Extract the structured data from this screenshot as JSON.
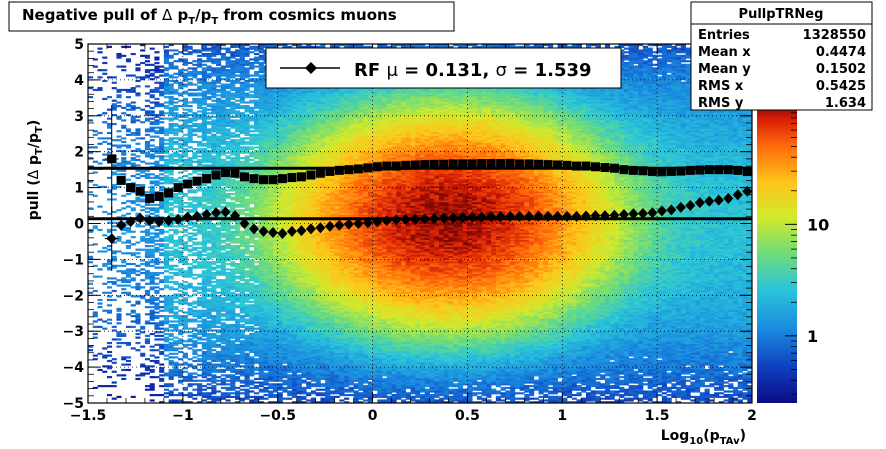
{
  "chart_data": {
    "type": "heatmap",
    "title_parts": [
      "Negative pull of ",
      "Δ",
      " p",
      "T",
      "/p",
      "T",
      " from cosmics muons"
    ],
    "xlabel_parts": [
      "Log",
      "10",
      "(p",
      "TAv",
      ")"
    ],
    "ylabel_parts": [
      "pull (",
      "Δ",
      " p",
      "T",
      "/p",
      "T",
      ")"
    ],
    "xlim": [
      -1.5,
      2.0
    ],
    "ylim": [
      -5,
      5
    ],
    "x_ticks": [
      "−1.5",
      "−1",
      "−0.5",
      "0",
      "0.5",
      "1",
      "1.5",
      "2"
    ],
    "x_tick_values": [
      -1.5,
      -1,
      -0.5,
      0,
      0.5,
      1,
      1.5,
      2
    ],
    "y_ticks": [
      "−5",
      "−4",
      "−3",
      "−2",
      "−1",
      "0",
      "1",
      "2",
      "3",
      "4",
      "5"
    ],
    "y_tick_values": [
      -5,
      -4,
      -3,
      -2,
      -1,
      0,
      1,
      2,
      3,
      4,
      5
    ],
    "grid": true,
    "colorbar": {
      "scale": "log",
      "ticks": [
        "1",
        "10"
      ],
      "tick_values": [
        1,
        10
      ],
      "range": [
        0.25,
        120
      ]
    },
    "legend": {
      "placement": "top-center",
      "prefix": "RF ",
      "mu": "μ",
      "mu_value": " =  0.131, ",
      "sigma": "σ",
      "sigma_value": " =   1.539"
    },
    "fit_lines": {
      "mean": 0.131,
      "sigma": 1.539
    },
    "stats_box": {
      "title": "PullpTRNeg",
      "rows": [
        {
          "label": "Entries",
          "value": "1328550"
        },
        {
          "label": "Mean x",
          "value": "0.4474"
        },
        {
          "label": "Mean y",
          "value": "0.1502"
        },
        {
          "label": "RMS x",
          "value": "0.5425"
        },
        {
          "label": "RMS y",
          "value": "1.634"
        }
      ]
    },
    "series": [
      {
        "marker": "diamond",
        "x": [
          -1.375,
          -1.325,
          -1.275,
          -1.225,
          -1.175,
          -1.125,
          -1.075,
          -1.025,
          -0.975,
          -0.925,
          -0.875,
          -0.825,
          -0.775,
          -0.725,
          -0.675,
          -0.625,
          -0.575,
          -0.525,
          -0.475,
          -0.425,
          -0.375,
          -0.325,
          -0.275,
          -0.225,
          -0.175,
          -0.125,
          -0.075,
          -0.025,
          0.025,
          0.075,
          0.125,
          0.175,
          0.225,
          0.275,
          0.325,
          0.375,
          0.425,
          0.475,
          0.525,
          0.575,
          0.625,
          0.675,
          0.725,
          0.775,
          0.825,
          0.875,
          0.925,
          0.975,
          1.025,
          1.075,
          1.125,
          1.175,
          1.225,
          1.275,
          1.325,
          1.375,
          1.425,
          1.475,
          1.525,
          1.575,
          1.625,
          1.675,
          1.725,
          1.775,
          1.825,
          1.875,
          1.925,
          1.975
        ],
        "y": [
          -0.42,
          -0.05,
          0.05,
          0.15,
          0.08,
          0.05,
          0.08,
          0.12,
          0.18,
          0.2,
          0.25,
          0.3,
          0.32,
          0.22,
          0.0,
          -0.15,
          -0.22,
          -0.25,
          -0.28,
          -0.22,
          -0.2,
          -0.15,
          -0.12,
          -0.08,
          -0.05,
          -0.02,
          0.0,
          0.02,
          0.05,
          0.08,
          0.1,
          0.11,
          0.12,
          0.13,
          0.14,
          0.15,
          0.16,
          0.17,
          0.18,
          0.18,
          0.19,
          0.19,
          0.2,
          0.2,
          0.2,
          0.21,
          0.2,
          0.2,
          0.2,
          0.2,
          0.21,
          0.22,
          0.22,
          0.23,
          0.25,
          0.27,
          0.28,
          0.3,
          0.35,
          0.38,
          0.45,
          0.5,
          0.58,
          0.62,
          0.65,
          0.7,
          0.8,
          0.9
        ],
        "yerr_first": 0.9
      },
      {
        "marker": "square",
        "x": [
          -1.375,
          -1.325,
          -1.275,
          -1.225,
          -1.175,
          -1.125,
          -1.075,
          -1.025,
          -0.975,
          -0.925,
          -0.875,
          -0.825,
          -0.775,
          -0.725,
          -0.675,
          -0.625,
          -0.575,
          -0.525,
          -0.475,
          -0.425,
          -0.375,
          -0.325,
          -0.275,
          -0.225,
          -0.175,
          -0.125,
          -0.075,
          -0.025,
          0.025,
          0.075,
          0.125,
          0.175,
          0.225,
          0.275,
          0.325,
          0.375,
          0.425,
          0.475,
          0.525,
          0.575,
          0.625,
          0.675,
          0.725,
          0.775,
          0.825,
          0.875,
          0.925,
          0.975,
          1.025,
          1.075,
          1.125,
          1.175,
          1.225,
          1.275,
          1.325,
          1.375,
          1.425,
          1.475,
          1.525,
          1.575,
          1.625,
          1.675,
          1.725,
          1.775,
          1.825,
          1.875,
          1.925,
          1.975
        ],
        "y": [
          1.8,
          1.2,
          1.0,
          0.9,
          0.7,
          0.75,
          0.85,
          1.0,
          1.1,
          1.18,
          1.25,
          1.35,
          1.42,
          1.4,
          1.3,
          1.25,
          1.22,
          1.22,
          1.25,
          1.28,
          1.3,
          1.35,
          1.4,
          1.45,
          1.48,
          1.5,
          1.52,
          1.55,
          1.58,
          1.6,
          1.6,
          1.62,
          1.63,
          1.64,
          1.65,
          1.65,
          1.66,
          1.66,
          1.66,
          1.67,
          1.67,
          1.67,
          1.67,
          1.66,
          1.66,
          1.65,
          1.64,
          1.63,
          1.62,
          1.6,
          1.6,
          1.58,
          1.56,
          1.54,
          1.5,
          1.48,
          1.47,
          1.45,
          1.44,
          1.45,
          1.46,
          1.48,
          1.49,
          1.5,
          1.5,
          1.5,
          1.48,
          1.45
        ],
        "yerr_first": 1.5
      }
    ]
  }
}
